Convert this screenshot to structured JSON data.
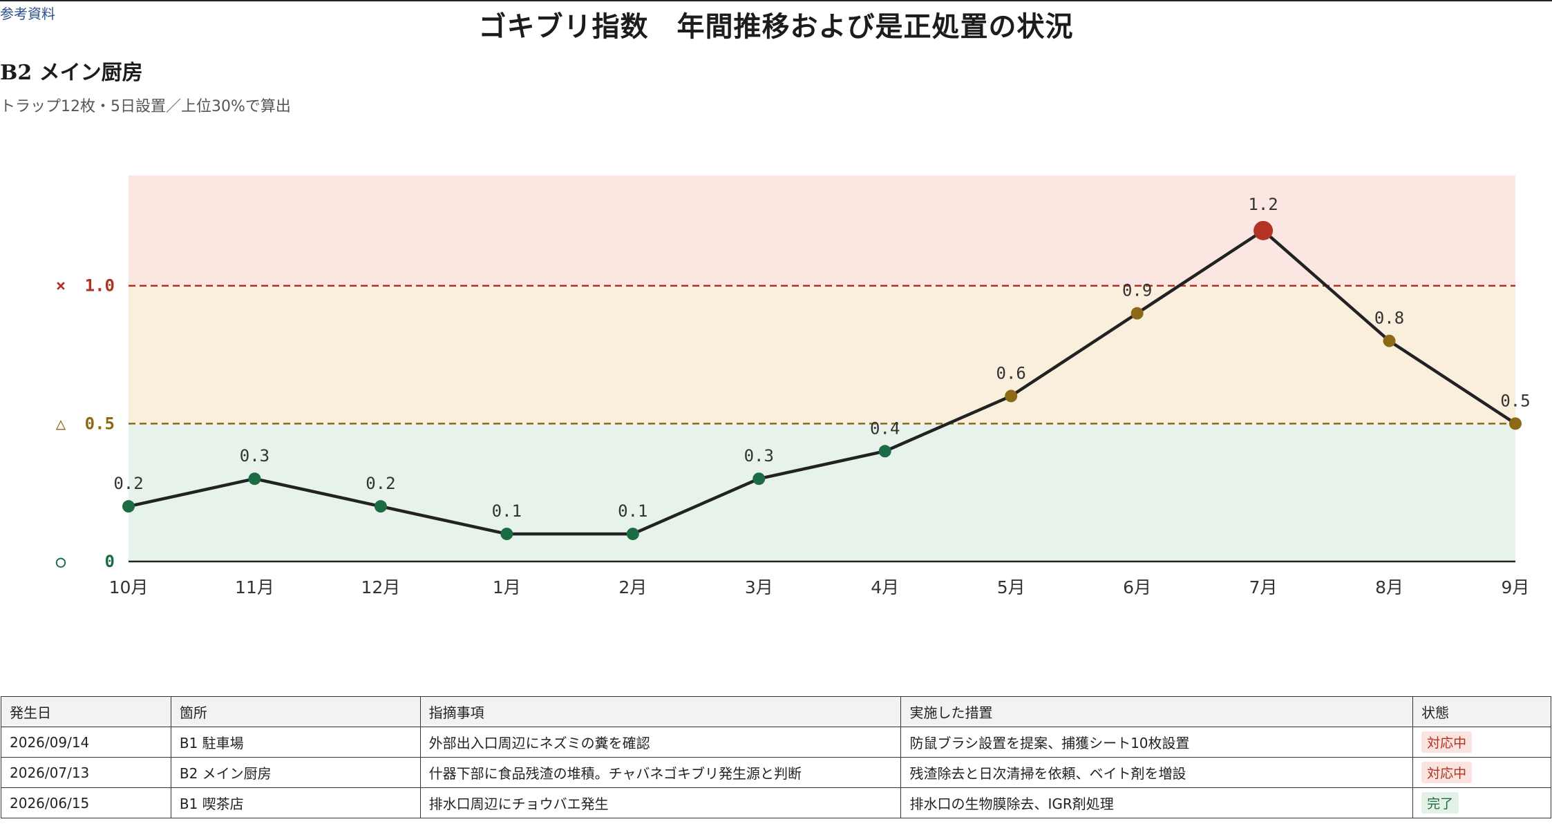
{
  "header": {
    "ref_link": "参考資料",
    "title": "ゴキブリ指数　年間推移および是正処置の状況",
    "section": "B2 メイン厨房",
    "subtitle": "トラップ12枚・5日設置／上位30%で算出"
  },
  "colors": {
    "good_band": "#e6f2ea",
    "warn_band": "#f9efdc",
    "bad_band": "#fbe6e2",
    "good": "#1b6b45",
    "warn": "#8b6a17",
    "bad": "#b23224",
    "line": "#222222"
  },
  "chart_data": {
    "type": "line",
    "categories": [
      "10月",
      "11月",
      "12月",
      "1月",
      "2月",
      "3月",
      "4月",
      "5月",
      "6月",
      "7月",
      "8月",
      "9月"
    ],
    "values": [
      0.2,
      0.3,
      0.2,
      0.1,
      0.1,
      0.3,
      0.4,
      0.6,
      0.9,
      1.2,
      0.8,
      0.5
    ],
    "ylim": [
      0,
      1.4
    ],
    "thresholds": [
      {
        "symbol": "○",
        "value": 0,
        "label": "0",
        "level": "good"
      },
      {
        "symbol": "△",
        "value": 0.5,
        "label": "0.5",
        "level": "warn"
      },
      {
        "symbol": "×",
        "value": 1.0,
        "label": "1.0",
        "level": "bad"
      }
    ],
    "grid": false,
    "data_labels": true
  },
  "table": {
    "headers": [
      "発生日",
      "箇所",
      "指摘事項",
      "実施した措置",
      "状態"
    ],
    "rows": [
      {
        "date": "2026/09/14",
        "place": "B1 駐車場",
        "finding": "外部出入口周辺にネズミの糞を確認",
        "action": "防鼠ブラシ設置を提案、捕獲シート10枚設置",
        "status": "対応中",
        "status_kind": "open"
      },
      {
        "date": "2026/07/13",
        "place": "B2 メイン厨房",
        "finding": "什器下部に食品残渣の堆積。チャバネゴキブリ発生源と判断",
        "action": "残渣除去と日次清掃を依頼、ベイト剤を増設",
        "status": "対応中",
        "status_kind": "open"
      },
      {
        "date": "2026/06/15",
        "place": "B1 喫茶店",
        "finding": "排水口周辺にチョウバエ発生",
        "action": "排水口の生物膜除去、IGR剤処理",
        "status": "完了",
        "status_kind": "done"
      }
    ]
  }
}
